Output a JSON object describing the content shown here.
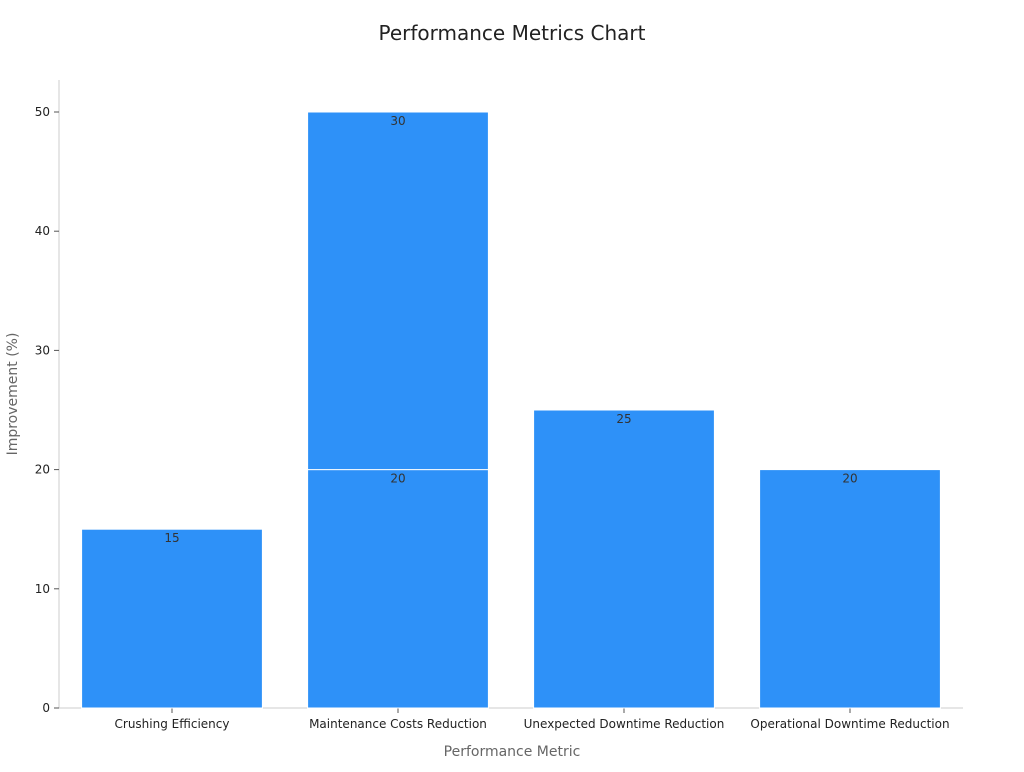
{
  "chart_data": {
    "type": "bar",
    "stacked": true,
    "title": "Performance Metrics Chart",
    "xlabel": "Performance Metric",
    "ylabel": "Improvement (%)",
    "categories": [
      "Crushing Efficiency",
      "Maintenance Costs Reduction",
      "Unexpected Downtime Reduction",
      "Operational Downtime Reduction"
    ],
    "series": [
      {
        "values": [
          15,
          20,
          25,
          20
        ]
      },
      {
        "values": [
          null,
          30,
          null,
          null
        ]
      }
    ],
    "ylim": [
      0,
      52.5
    ],
    "yticks": [
      0,
      10,
      20,
      30,
      40,
      50
    ],
    "grid": false,
    "legend": "none",
    "colors": {
      "bar": "#2e91f8",
      "bar_edge": "#ffffff",
      "axis": "#cccccc",
      "tick": "#555555",
      "title": "#222222",
      "axis_label": "#666666"
    }
  }
}
